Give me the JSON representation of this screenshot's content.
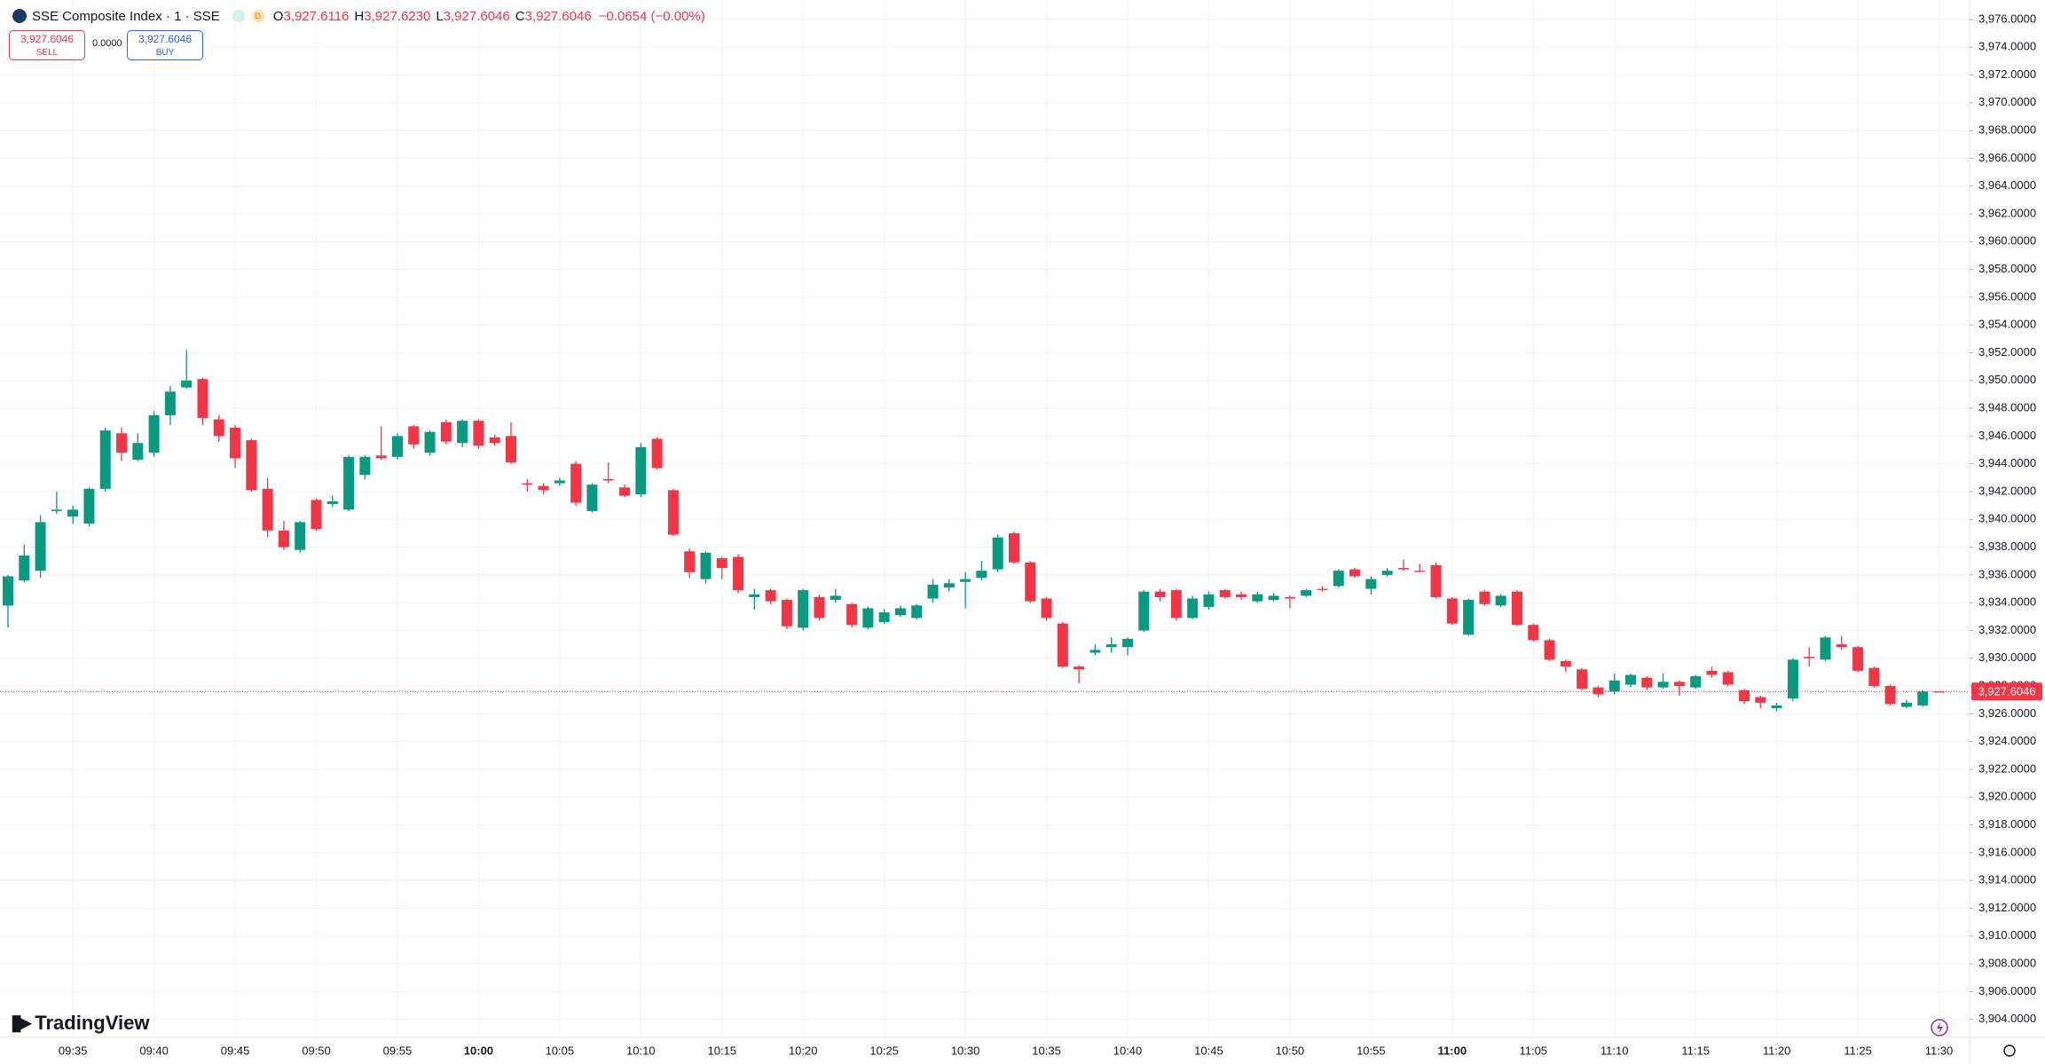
{
  "header": {
    "symbol": "SSE Composite Index · 1 · SSE",
    "badge": "D",
    "open_label": "O",
    "open": "3,927.6116",
    "high_label": "H",
    "high": "3,927.6230",
    "low_label": "L",
    "low": "3,927.6046",
    "close_label": "C",
    "close": "3,927.6046",
    "change": "−0.0654 (−0.00%)"
  },
  "trade_panel": {
    "sell_price": "3,927.6046",
    "sell_label": "SELL",
    "spread": "0.0000",
    "buy_price": "3,927.6046",
    "buy_label": "BUY"
  },
  "branding": "TradingView",
  "chart_data": {
    "type": "candlestick",
    "up_color": "#089981",
    "down_color": "#f23645",
    "grid": true,
    "last_price_label": "3,927.6046",
    "categories": [
      null,
      null,
      null,
      null,
      "09:35",
      null,
      null,
      null,
      null,
      "09:40",
      null,
      null,
      null,
      null,
      "09:45",
      null,
      null,
      null,
      null,
      "09:50",
      null,
      null,
      null,
      null,
      "09:55",
      null,
      null,
      null,
      null,
      "10:00",
      null,
      null,
      null,
      null,
      "10:05",
      null,
      null,
      null,
      null,
      "10:10",
      null,
      null,
      null,
      null,
      "10:15",
      null,
      null,
      null,
      null,
      "10:20",
      null,
      null,
      null,
      null,
      "10:25",
      null,
      null,
      null,
      null,
      "10:30",
      null,
      null,
      null,
      null,
      "10:35",
      null,
      null,
      null,
      null,
      "10:40",
      null,
      null,
      null,
      null,
      "10:45",
      null,
      null,
      null,
      null,
      "10:50",
      null,
      null,
      null,
      null,
      "10:55",
      null,
      null,
      null,
      null,
      "11:00",
      null,
      null,
      null,
      null,
      "11:05",
      null,
      null,
      null,
      null,
      "11:10",
      null,
      null,
      null,
      null,
      "11:15",
      null,
      null,
      null,
      null,
      "11:20",
      null,
      null,
      null,
      null,
      "11:25",
      null,
      null,
      null,
      null,
      "11:30"
    ],
    "open": [
      3933.8,
      3935.6,
      3936.3,
      3940.6,
      3940.2,
      3939.7,
      3942.2,
      3946.2,
      3944.3,
      3944.8,
      3947.5,
      3949.5,
      3950.1,
      3947.2,
      3946.6,
      3945.7,
      3942.2,
      3939.2,
      3937.8,
      3941.4,
      3941.1,
      3940.7,
      3943.2,
      3944.6,
      3944.5,
      3946.7,
      3944.8,
      3947,
      3945.5,
      3947.1,
      3945.9,
      3946,
      3942.6,
      3942.4,
      3942.6,
      3944,
      3940.6,
      3942.9,
      3942.3,
      3941.8,
      3945.8,
      3942.1,
      3937.7,
      3935.7,
      3937.2,
      3937.3,
      3934.4,
      3934.9,
      3934.2,
      3932.2,
      3934.4,
      3934.2,
      3933.9,
      3932.2,
      3932.6,
      3933.1,
      3932.9,
      3934.3,
      3935.1,
      3935.5,
      3935.8,
      3936.4,
      3939,
      3936.9,
      3934.3,
      3932.5,
      3929.4,
      3930.4,
      3930.8,
      3930.8,
      3932,
      3934.8,
      3934.9,
      3932.9,
      3933.7,
      3934.9,
      3934.6,
      3934.1,
      3934.2,
      3934.4,
      3934.5,
      3935,
      3935.2,
      3936.4,
      3935,
      3936,
      3936.5,
      3936.3,
      3936.7,
      3934.3,
      3931.7,
      3934.8,
      3933.8,
      3934.8,
      3932.4,
      3931.3,
      3929.8,
      3929.2,
      3927.9,
      3927.6,
      3928.1,
      3928.6,
      3927.9,
      3928.3,
      3927.9,
      3929.1,
      3929,
      3927.7,
      3927.2,
      3926.4,
      3927.1,
      3930.1,
      3929.9,
      3931,
      3930.8,
      3929.3,
      3928,
      3926.5,
      3926.6,
      3927.6116
    ],
    "high": [
      3936,
      3938.2,
      3940.3,
      3942,
      3941,
      3942.3,
      3946.6,
      3946.6,
      3946.2,
      3947.8,
      3949.6,
      3952.2,
      3950.2,
      3947.5,
      3946.8,
      3945.8,
      3943,
      3939.9,
      3939.9,
      3941.5,
      3941.7,
      3944.6,
      3944.6,
      3946.7,
      3946.2,
      3946.8,
      3946.4,
      3947.2,
      3947.2,
      3947.2,
      3946.1,
      3947,
      3942.9,
      3942.6,
      3943,
      3944.2,
      3942.6,
      3944.1,
      3942.5,
      3945.5,
      3945.9,
      3942.2,
      3937.9,
      3937.7,
      3937.3,
      3937.5,
      3935,
      3935,
      3934.3,
      3935,
      3934.6,
      3935,
      3934,
      3933.7,
      3933.5,
      3933.8,
      3933.9,
      3935.7,
      3935.7,
      3936.2,
      3937,
      3938.9,
      3939.1,
      3937,
      3934.4,
      3932.6,
      3929.5,
      3931,
      3931.5,
      3931.5,
      3934.9,
      3935,
      3935,
      3934.5,
      3934.8,
      3935,
      3934.8,
      3934.8,
      3934.7,
      3934.5,
      3935,
      3935.2,
      3936.4,
      3936.5,
      3935.9,
      3936.5,
      3937.1,
      3936.8,
      3936.9,
      3934.4,
      3934.3,
      3934.9,
      3934.6,
      3934.9,
      3932.5,
      3931.4,
      3929.9,
      3929.3,
      3928,
      3928.9,
      3928.9,
      3928.7,
      3928.9,
      3928.4,
      3928.8,
      3929.4,
      3929.1,
      3927.8,
      3927.3,
      3926.8,
      3930,
      3930.8,
      3931.6,
      3931.6,
      3930.9,
      3929.4,
      3928.1,
      3927,
      3927.7,
      3927.623
    ],
    "low": [
      3932.2,
      3935.5,
      3935.8,
      3940.4,
      3939.7,
      3939.5,
      3942,
      3944.2,
      3944.2,
      3944.5,
      3946.8,
      3949.4,
      3946.8,
      3945.6,
      3943.7,
      3942,
      3938.7,
      3937.8,
      3937.6,
      3939.2,
      3940.9,
      3940.6,
      3942.9,
      3944.3,
      3944.3,
      3945.1,
      3944.6,
      3945.4,
      3945.2,
      3945.1,
      3945.3,
      3944,
      3942,
      3941.8,
      3942.4,
      3941,
      3940.5,
      3942.6,
      3941.6,
      3941.6,
      3943.6,
      3938.8,
      3935.8,
      3935.4,
      3935.7,
      3934.7,
      3933.5,
      3933.9,
      3932.1,
      3932,
      3932.7,
      3934,
      3932.2,
      3932.1,
      3932.5,
      3933,
      3932.8,
      3934,
      3934.8,
      3933.6,
      3935.6,
      3936.2,
      3936.8,
      3934,
      3932.7,
      3929.3,
      3928.2,
      3930.2,
      3930.4,
      3930.2,
      3931.9,
      3934.1,
      3932.7,
      3932.8,
      3933.5,
      3934.3,
      3934.2,
      3934,
      3934.1,
      3933.6,
      3934.4,
      3934.8,
      3935.1,
      3935.8,
      3934.6,
      3935.9,
      3936.3,
      3936.2,
      3934.3,
      3932.4,
      3931.6,
      3933.8,
      3933.7,
      3932.3,
      3931.2,
      3929.8,
      3929,
      3927.7,
      3927.2,
      3927.4,
      3927.9,
      3927.7,
      3927.8,
      3927.3,
      3927.8,
      3928.6,
      3928,
      3926.7,
      3926.4,
      3926.2,
      3926.9,
      3929.4,
      3929.8,
      3930.6,
      3929,
      3927.9,
      3926.6,
      3926.4,
      3926.5,
      3927.6046
    ],
    "close": [
      3935.9,
      3937.4,
      3939.8,
      3940.7,
      3940.7,
      3942.2,
      3946.4,
      3944.8,
      3945.5,
      3947.5,
      3949.2,
      3950,
      3947.3,
      3946,
      3944.4,
      3942.1,
      3939.2,
      3938,
      3939.8,
      3939.3,
      3941.3,
      3944.5,
      3944.5,
      3944.4,
      3946,
      3945.4,
      3946.3,
      3945.6,
      3947.1,
      3945.3,
      3945.5,
      3944.1,
      3942.5,
      3942.1,
      3942.8,
      3941.2,
      3942.5,
      3942.8,
      3941.7,
      3945.2,
      3943.7,
      3938.9,
      3936.2,
      3937.6,
      3936.5,
      3934.9,
      3934.6,
      3934.1,
      3932.3,
      3934.9,
      3932.9,
      3934.5,
      3932.4,
      3933.6,
      3933.3,
      3933.6,
      3933.8,
      3935.3,
      3935.4,
      3935.7,
      3936.3,
      3938.7,
      3936.9,
      3934.1,
      3932.9,
      3929.4,
      3929.2,
      3930.6,
      3931,
      3931.4,
      3934.8,
      3934.4,
      3932.9,
      3934.3,
      3934.6,
      3934.4,
      3934.4,
      3934.6,
      3934.5,
      3934.3,
      3934.9,
      3935,
      3936.3,
      3935.9,
      3935.7,
      3936.3,
      3936.4,
      3936.3,
      3934.4,
      3932.5,
      3934.2,
      3933.9,
      3934.5,
      3932.4,
      3931.3,
      3929.9,
      3929.4,
      3927.8,
      3927.4,
      3928.4,
      3928.8,
      3927.9,
      3928.3,
      3928,
      3928.7,
      3928.8,
      3928.1,
      3926.9,
      3926.8,
      3926.6,
      3929.9,
      3930,
      3931.5,
      3930.8,
      3929.1,
      3928,
      3926.7,
      3926.8,
      3927.6046,
      3927.6046
    ],
    "ylim": [
      3902.7,
      3977.4
    ],
    "yticks": [
      {
        "value": 3904,
        "label": "3,904.0000"
      },
      {
        "value": 3906,
        "label": "3,906.0000"
      },
      {
        "value": 3908,
        "label": "3,908.0000"
      },
      {
        "value": 3910,
        "label": "3,910.0000"
      },
      {
        "value": 3912,
        "label": "3,912.0000"
      },
      {
        "value": 3914,
        "label": "3,914.0000"
      },
      {
        "value": 3916,
        "label": "3,916.0000"
      },
      {
        "value": 3918,
        "label": "3,918.0000"
      },
      {
        "value": 3920,
        "label": "3,920.0000"
      },
      {
        "value": 3922,
        "label": "3,922.0000"
      },
      {
        "value": 3924,
        "label": "3,924.0000"
      },
      {
        "value": 3926,
        "label": "3,926.0000"
      },
      {
        "value": 3928,
        "label": "3,928.0000"
      },
      {
        "value": 3930,
        "label": "3,930.0000"
      },
      {
        "value": 3932,
        "label": "3,932.0000"
      },
      {
        "value": 3934,
        "label": "3,934.0000"
      },
      {
        "value": 3936,
        "label": "3,936.0000"
      },
      {
        "value": 3938,
        "label": "3,938.0000"
      },
      {
        "value": 3940,
        "label": "3,940.0000"
      },
      {
        "value": 3942,
        "label": "3,942.0000"
      },
      {
        "value": 3944,
        "label": "3,944.0000"
      },
      {
        "value": 3946,
        "label": "3,946.0000"
      },
      {
        "value": 3948,
        "label": "3,948.0000"
      },
      {
        "value": 3950,
        "label": "3,950.0000"
      },
      {
        "value": 3952,
        "label": "3,952.0000"
      },
      {
        "value": 3954,
        "label": "3,954.0000"
      },
      {
        "value": 3956,
        "label": "3,956.0000"
      },
      {
        "value": 3958,
        "label": "3,958.0000"
      },
      {
        "value": 3960,
        "label": "3,960.0000"
      },
      {
        "value": 3962,
        "label": "3,962.0000"
      },
      {
        "value": 3964,
        "label": "3,964.0000"
      },
      {
        "value": 3966,
        "label": "3,966.0000"
      },
      {
        "value": 3968,
        "label": "3,968.0000"
      },
      {
        "value": 3970,
        "label": "3,970.0000"
      },
      {
        "value": 3972,
        "label": "3,972.0000"
      },
      {
        "value": 3974,
        "label": "3,974.0000"
      },
      {
        "value": 3976,
        "label": "3,976.0000"
      }
    ]
  }
}
